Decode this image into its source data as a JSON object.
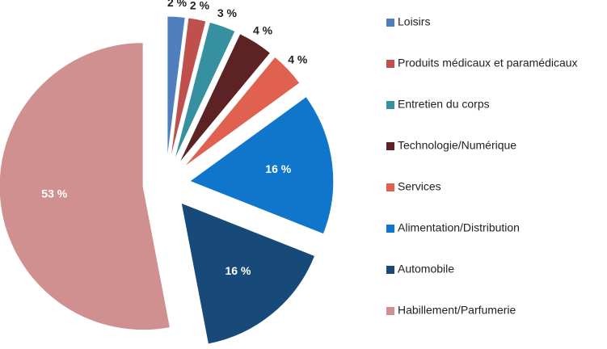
{
  "chart_data": {
    "type": "pie",
    "categories": [
      "Loisirs",
      "Produits médicaux et paramédicaux",
      "Entretien du corps",
      "Technologie/Numérique",
      "Services",
      "Alimentation/Distribution",
      "Automobile",
      "Habillement/Parfumerie"
    ],
    "values": [
      2,
      2,
      3,
      4,
      4,
      16,
      16,
      53
    ],
    "value_labels": [
      "2 %",
      "2 %",
      "3 %",
      "4 %",
      "4 %",
      "16 %",
      "16 %",
      "53 %"
    ],
    "colors": [
      "#4f7fbf",
      "#c0504d",
      "#36909f",
      "#5c2224",
      "#e0614f",
      "#1076cc",
      "#174a79",
      "#d09090"
    ],
    "legend": "right"
  }
}
